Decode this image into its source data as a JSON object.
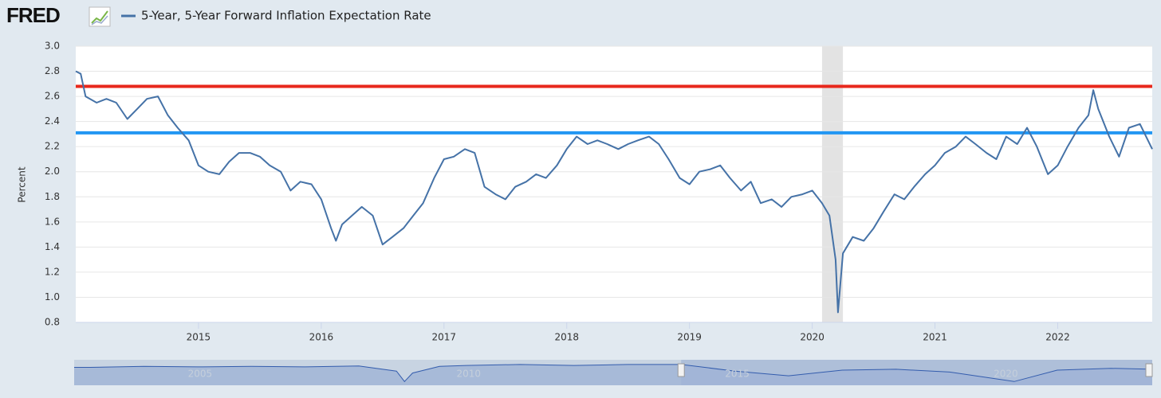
{
  "chart_data": {
    "type": "line",
    "logo": "FRED",
    "title": "5-Year, 5-Year Forward Inflation Expectation Rate",
    "ylabel": "Percent",
    "x": [
      2014.0,
      2014.04,
      2014.08,
      2014.17,
      2014.25,
      2014.33,
      2014.42,
      2014.5,
      2014.58,
      2014.67,
      2014.75,
      2014.83,
      2014.92,
      2015.0,
      2015.08,
      2015.17,
      2015.25,
      2015.33,
      2015.42,
      2015.5,
      2015.58,
      2015.67,
      2015.75,
      2015.83,
      2015.92,
      2016.0,
      2016.08,
      2016.12,
      2016.17,
      2016.25,
      2016.33,
      2016.42,
      2016.5,
      2016.58,
      2016.67,
      2016.75,
      2016.83,
      2016.92,
      2017.0,
      2017.08,
      2017.17,
      2017.25,
      2017.33,
      2017.42,
      2017.5,
      2017.58,
      2017.67,
      2017.75,
      2017.83,
      2017.92,
      2018.0,
      2018.08,
      2018.17,
      2018.25,
      2018.33,
      2018.42,
      2018.5,
      2018.58,
      2018.67,
      2018.75,
      2018.83,
      2018.92,
      2019.0,
      2019.08,
      2019.17,
      2019.25,
      2019.33,
      2019.42,
      2019.5,
      2019.58,
      2019.67,
      2019.75,
      2019.83,
      2019.92,
      2020.0,
      2020.08,
      2020.14,
      2020.19,
      2020.21,
      2020.25,
      2020.33,
      2020.42,
      2020.5,
      2020.58,
      2020.67,
      2020.75,
      2020.83,
      2020.92,
      2021.0,
      2021.08,
      2021.17,
      2021.25,
      2021.33,
      2021.42,
      2021.5,
      2021.58,
      2021.67,
      2021.75,
      2021.83,
      2021.92,
      2022.0,
      2022.08,
      2022.17,
      2022.25,
      2022.29,
      2022.33,
      2022.42,
      2022.5,
      2022.58,
      2022.67,
      2022.77
    ],
    "series": [
      {
        "name": "5-Year, 5-Year Forward Inflation Expectation Rate",
        "color": "#4572a7",
        "values": [
          2.8,
          2.78,
          2.6,
          2.55,
          2.58,
          2.55,
          2.42,
          2.5,
          2.58,
          2.6,
          2.45,
          2.35,
          2.25,
          2.05,
          2.0,
          1.98,
          2.08,
          2.15,
          2.15,
          2.12,
          2.05,
          2.0,
          1.85,
          1.92,
          1.9,
          1.78,
          1.55,
          1.45,
          1.58,
          1.65,
          1.72,
          1.65,
          1.42,
          1.48,
          1.55,
          1.65,
          1.75,
          1.95,
          2.1,
          2.12,
          2.18,
          2.15,
          1.88,
          1.82,
          1.78,
          1.88,
          1.92,
          1.98,
          1.95,
          2.05,
          2.18,
          2.28,
          2.22,
          2.25,
          2.22,
          2.18,
          2.22,
          2.25,
          2.28,
          2.22,
          2.1,
          1.95,
          1.9,
          2.0,
          2.02,
          2.05,
          1.95,
          1.85,
          1.92,
          1.75,
          1.78,
          1.72,
          1.8,
          1.82,
          1.85,
          1.75,
          1.65,
          1.3,
          0.88,
          1.35,
          1.48,
          1.45,
          1.55,
          1.68,
          1.82,
          1.78,
          1.88,
          1.98,
          2.05,
          2.15,
          2.2,
          2.28,
          2.22,
          2.15,
          2.1,
          2.28,
          2.22,
          2.35,
          2.2,
          1.98,
          2.05,
          2.2,
          2.35,
          2.45,
          2.65,
          2.5,
          2.28,
          2.12,
          2.35,
          2.38,
          2.18
        ]
      }
    ],
    "xlim": [
      2014.0,
      2022.77
    ],
    "xticks": [
      2015,
      2016,
      2017,
      2018,
      2019,
      2020,
      2021,
      2022
    ],
    "ylim": [
      0.8,
      3.0
    ],
    "yticks": [
      {
        "value": 0.8,
        "label": "0.8"
      },
      {
        "value": 1.0,
        "label": "1.0"
      },
      1.2,
      1.4,
      1.6,
      1.8,
      {
        "value": 2.0,
        "label": "2.0"
      },
      2.2,
      2.4,
      2.6,
      2.8,
      {
        "value": 3.0,
        "label": "3.0"
      }
    ],
    "grid": true,
    "recession": [
      2020.08,
      2020.25
    ],
    "reference_lines": [
      {
        "value": 2.68,
        "color": "#e8281c"
      },
      {
        "value": 2.31,
        "color": "#2196f3"
      }
    ],
    "navigator": {
      "xlim": [
        2002.7,
        2022.77
      ],
      "ylim": [
        0.5,
        3.2
      ],
      "xticks": [
        2005,
        2010,
        2015,
        2020
      ],
      "x": [
        2002.7,
        2003,
        2004,
        2005,
        2006,
        2007,
        2008,
        2008.7,
        2008.85,
        2009,
        2009.5,
        2010,
        2011,
        2012,
        2013,
        2014,
        2015,
        2016,
        2017,
        2018,
        2019,
        2020.2,
        2021,
        2022,
        2022.77
      ],
      "values": [
        2.4,
        2.4,
        2.5,
        2.45,
        2.5,
        2.45,
        2.55,
        2.0,
        0.9,
        1.8,
        2.5,
        2.6,
        2.7,
        2.6,
        2.7,
        2.7,
        2.0,
        1.5,
        2.1,
        2.2,
        1.9,
        0.9,
        2.1,
        2.3,
        2.2
      ],
      "selection": [
        2014.0,
        2022.77
      ],
      "color": "#335cad",
      "fill": "#9fb3d6"
    }
  }
}
